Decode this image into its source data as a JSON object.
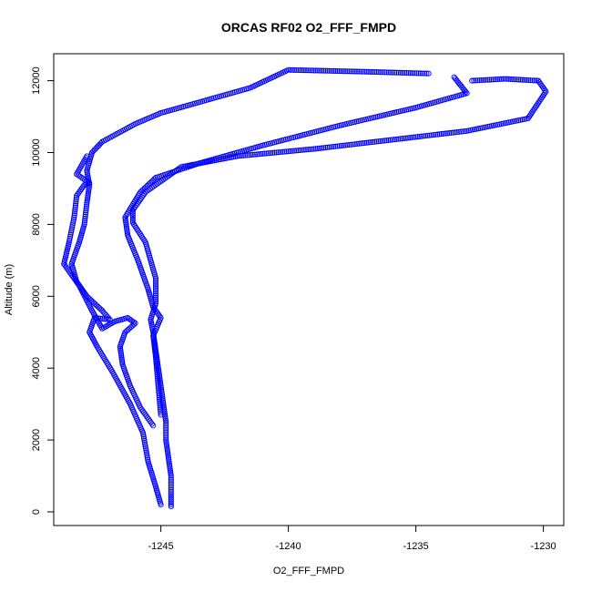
{
  "chart_data": {
    "type": "scatter",
    "title": "ORCAS RF02 O2_FFF_FMPD",
    "xlabel": "O2_FFF_FMPD",
    "ylabel": "Altitude (m)",
    "xlim": [
      -1249.2,
      -1229.2
    ],
    "ylim": [
      -380,
      12750
    ],
    "xticks": [
      -1245,
      -1240,
      -1235,
      -1230
    ],
    "yticks": [
      0,
      2000,
      4000,
      6000,
      8000,
      10000,
      12000
    ],
    "marker": "open-circle",
    "grid": false,
    "colors": {
      "points": "#0000ff"
    },
    "series": [
      {
        "points": [
          [
            -1244.6,
            150
          ],
          [
            -1244.6,
            500
          ],
          [
            -1244.6,
            1000
          ],
          [
            -1244.7,
            1500
          ],
          [
            -1244.8,
            2000
          ],
          [
            -1244.8,
            2500
          ],
          [
            -1244.9,
            3000
          ],
          [
            -1245.0,
            3500
          ],
          [
            -1245.1,
            4000
          ],
          [
            -1245.2,
            4500
          ],
          [
            -1245.3,
            5000
          ],
          [
            -1245.4,
            5350
          ],
          [
            -1245.2,
            5800
          ],
          [
            -1245.2,
            6500
          ],
          [
            -1245.6,
            7500
          ],
          [
            -1246.1,
            8050
          ],
          [
            -1246.1,
            8400
          ],
          [
            -1245.6,
            8900
          ],
          [
            -1244.2,
            9600
          ],
          [
            -1242.0,
            9900
          ],
          [
            -1239.0,
            10100
          ],
          [
            -1236.0,
            10350
          ],
          [
            -1233.0,
            10600
          ],
          [
            -1230.6,
            10950
          ],
          [
            -1229.9,
            11700
          ],
          [
            -1230.2,
            12000
          ],
          [
            -1231.5,
            12050
          ],
          [
            -1232.8,
            12000
          ]
        ]
      },
      {
        "points": [
          [
            -1245.0,
            200
          ],
          [
            -1245.2,
            700
          ],
          [
            -1245.5,
            1400
          ],
          [
            -1245.7,
            2200
          ],
          [
            -1246.2,
            3000
          ],
          [
            -1246.9,
            3900
          ],
          [
            -1247.5,
            4600
          ],
          [
            -1247.8,
            5000
          ],
          [
            -1247.6,
            5400
          ],
          [
            -1247.0,
            5350
          ],
          [
            -1247.3,
            5600
          ],
          [
            -1247.9,
            6000
          ],
          [
            -1248.3,
            6400
          ],
          [
            -1248.5,
            6900
          ],
          [
            -1248.2,
            7500
          ],
          [
            -1248.0,
            8000
          ],
          [
            -1247.9,
            8600
          ],
          [
            -1247.8,
            9100
          ],
          [
            -1247.9,
            9500
          ],
          [
            -1247.7,
            10000
          ],
          [
            -1247.3,
            10300
          ],
          [
            -1246.0,
            10800
          ],
          [
            -1245.0,
            11100
          ],
          [
            -1243.0,
            11500
          ],
          [
            -1241.5,
            11800
          ],
          [
            -1240.0,
            12300
          ],
          [
            -1237.0,
            12250
          ],
          [
            -1234.5,
            12200
          ]
        ]
      },
      {
        "points": [
          [
            -1245.3,
            2400
          ],
          [
            -1245.8,
            2900
          ],
          [
            -1246.2,
            3500
          ],
          [
            -1246.5,
            4100
          ],
          [
            -1246.6,
            4600
          ],
          [
            -1246.4,
            5000
          ],
          [
            -1246.0,
            5250
          ],
          [
            -1246.3,
            5400
          ],
          [
            -1246.8,
            5300
          ],
          [
            -1247.3,
            5100
          ],
          [
            -1247.7,
            5600
          ],
          [
            -1248.2,
            6300
          ],
          [
            -1248.8,
            6900
          ],
          [
            -1248.6,
            7500
          ],
          [
            -1248.4,
            8200
          ],
          [
            -1248.3,
            8800
          ],
          [
            -1248.0,
            9100
          ],
          [
            -1247.8,
            9150
          ],
          [
            -1248.3,
            9400
          ],
          [
            -1247.9,
            9900
          ]
        ]
      },
      {
        "points": [
          [
            -1245.0,
            2700
          ],
          [
            -1245.1,
            3500
          ],
          [
            -1245.2,
            4300
          ],
          [
            -1245.3,
            4900
          ],
          [
            -1245.0,
            5400
          ],
          [
            -1245.3,
            5700
          ],
          [
            -1245.5,
            6200
          ],
          [
            -1245.9,
            7000
          ],
          [
            -1246.3,
            7700
          ],
          [
            -1246.4,
            8200
          ],
          [
            -1245.8,
            8900
          ],
          [
            -1245.2,
            9300
          ],
          [
            -1243.5,
            9700
          ],
          [
            -1241.0,
            10200
          ],
          [
            -1238.0,
            10750
          ],
          [
            -1235.0,
            11250
          ],
          [
            -1233.0,
            11650
          ],
          [
            -1233.5,
            12100
          ]
        ]
      }
    ]
  }
}
